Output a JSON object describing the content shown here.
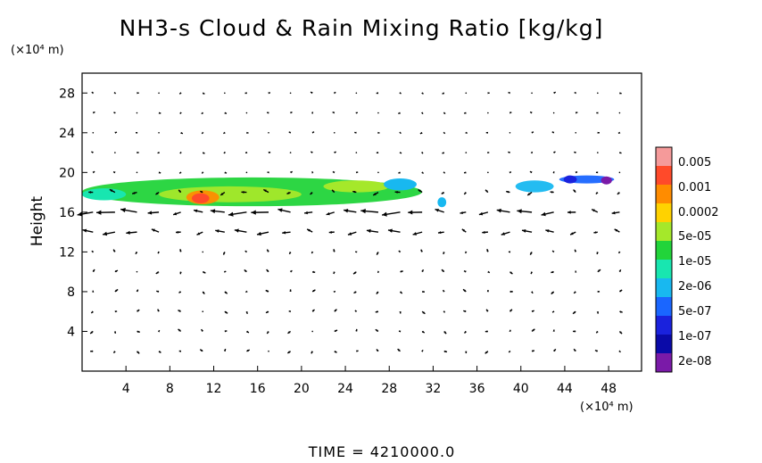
{
  "chart_data": {
    "type": "heatmap",
    "title": "NH3-s Cloud & Rain Mixing Ratio [kg/kg]",
    "ylabel": "Height",
    "xunit": "(×10⁴ m)",
    "yunit": "(×10⁴ m)",
    "xlim": [
      0,
      51
    ],
    "ylim": [
      0,
      30
    ],
    "x_ticks": [
      "4",
      "8",
      "12",
      "16",
      "20",
      "24",
      "28",
      "32",
      "36",
      "40",
      "44",
      "48"
    ],
    "y_ticks": [
      "4",
      "8",
      "12",
      "16",
      "20",
      "24",
      "28"
    ],
    "colorbar": {
      "labels": [
        "0.005",
        "0.001",
        "0.0002",
        "5e-05",
        "1e-05",
        "2e-06",
        "5e-07",
        "1e-07",
        "2e-08"
      ],
      "colors": [
        "#f59a9a",
        "#ff4a2a",
        "#ff8c00",
        "#ffd200",
        "#a5e82a",
        "#22d43a",
        "#18e6b0",
        "#18b8f0",
        "#1a66ff",
        "#1a22dd",
        "#0a0aa8",
        "#7a1aa8"
      ]
    },
    "cloud_regions": [
      {
        "level": "1e-05",
        "color": "#22d43a",
        "x": [
          0,
          31
        ],
        "y": [
          16.6,
          19.5
        ]
      },
      {
        "level": "5e-05",
        "color": "#a5e82a",
        "x": [
          7,
          20
        ],
        "y": [
          17,
          18.6
        ]
      },
      {
        "level": "0.0002",
        "color": "#ff8c00",
        "x": [
          9.5,
          12.5
        ],
        "y": [
          16.8,
          18.2
        ]
      },
      {
        "level": "5e-07",
        "color": "#18b8f0",
        "x": [
          39.5,
          43
        ],
        "y": [
          18,
          19.2
        ]
      },
      {
        "level": "1e-07",
        "color": "#1a66ff",
        "x": [
          43.5,
          48.5
        ],
        "y": [
          18.9,
          19.7
        ]
      }
    ],
    "wind_vectors": "normalized (dx, dy) arrows on a 2-unit grid; strongest westward flow near 13–17 (×10⁴ m) height"
  },
  "footer": {
    "time_label": "TIME = 4210000.0"
  },
  "colors": {
    "axis": "#000000",
    "vector": "#000000",
    "background": "#ffffff"
  }
}
